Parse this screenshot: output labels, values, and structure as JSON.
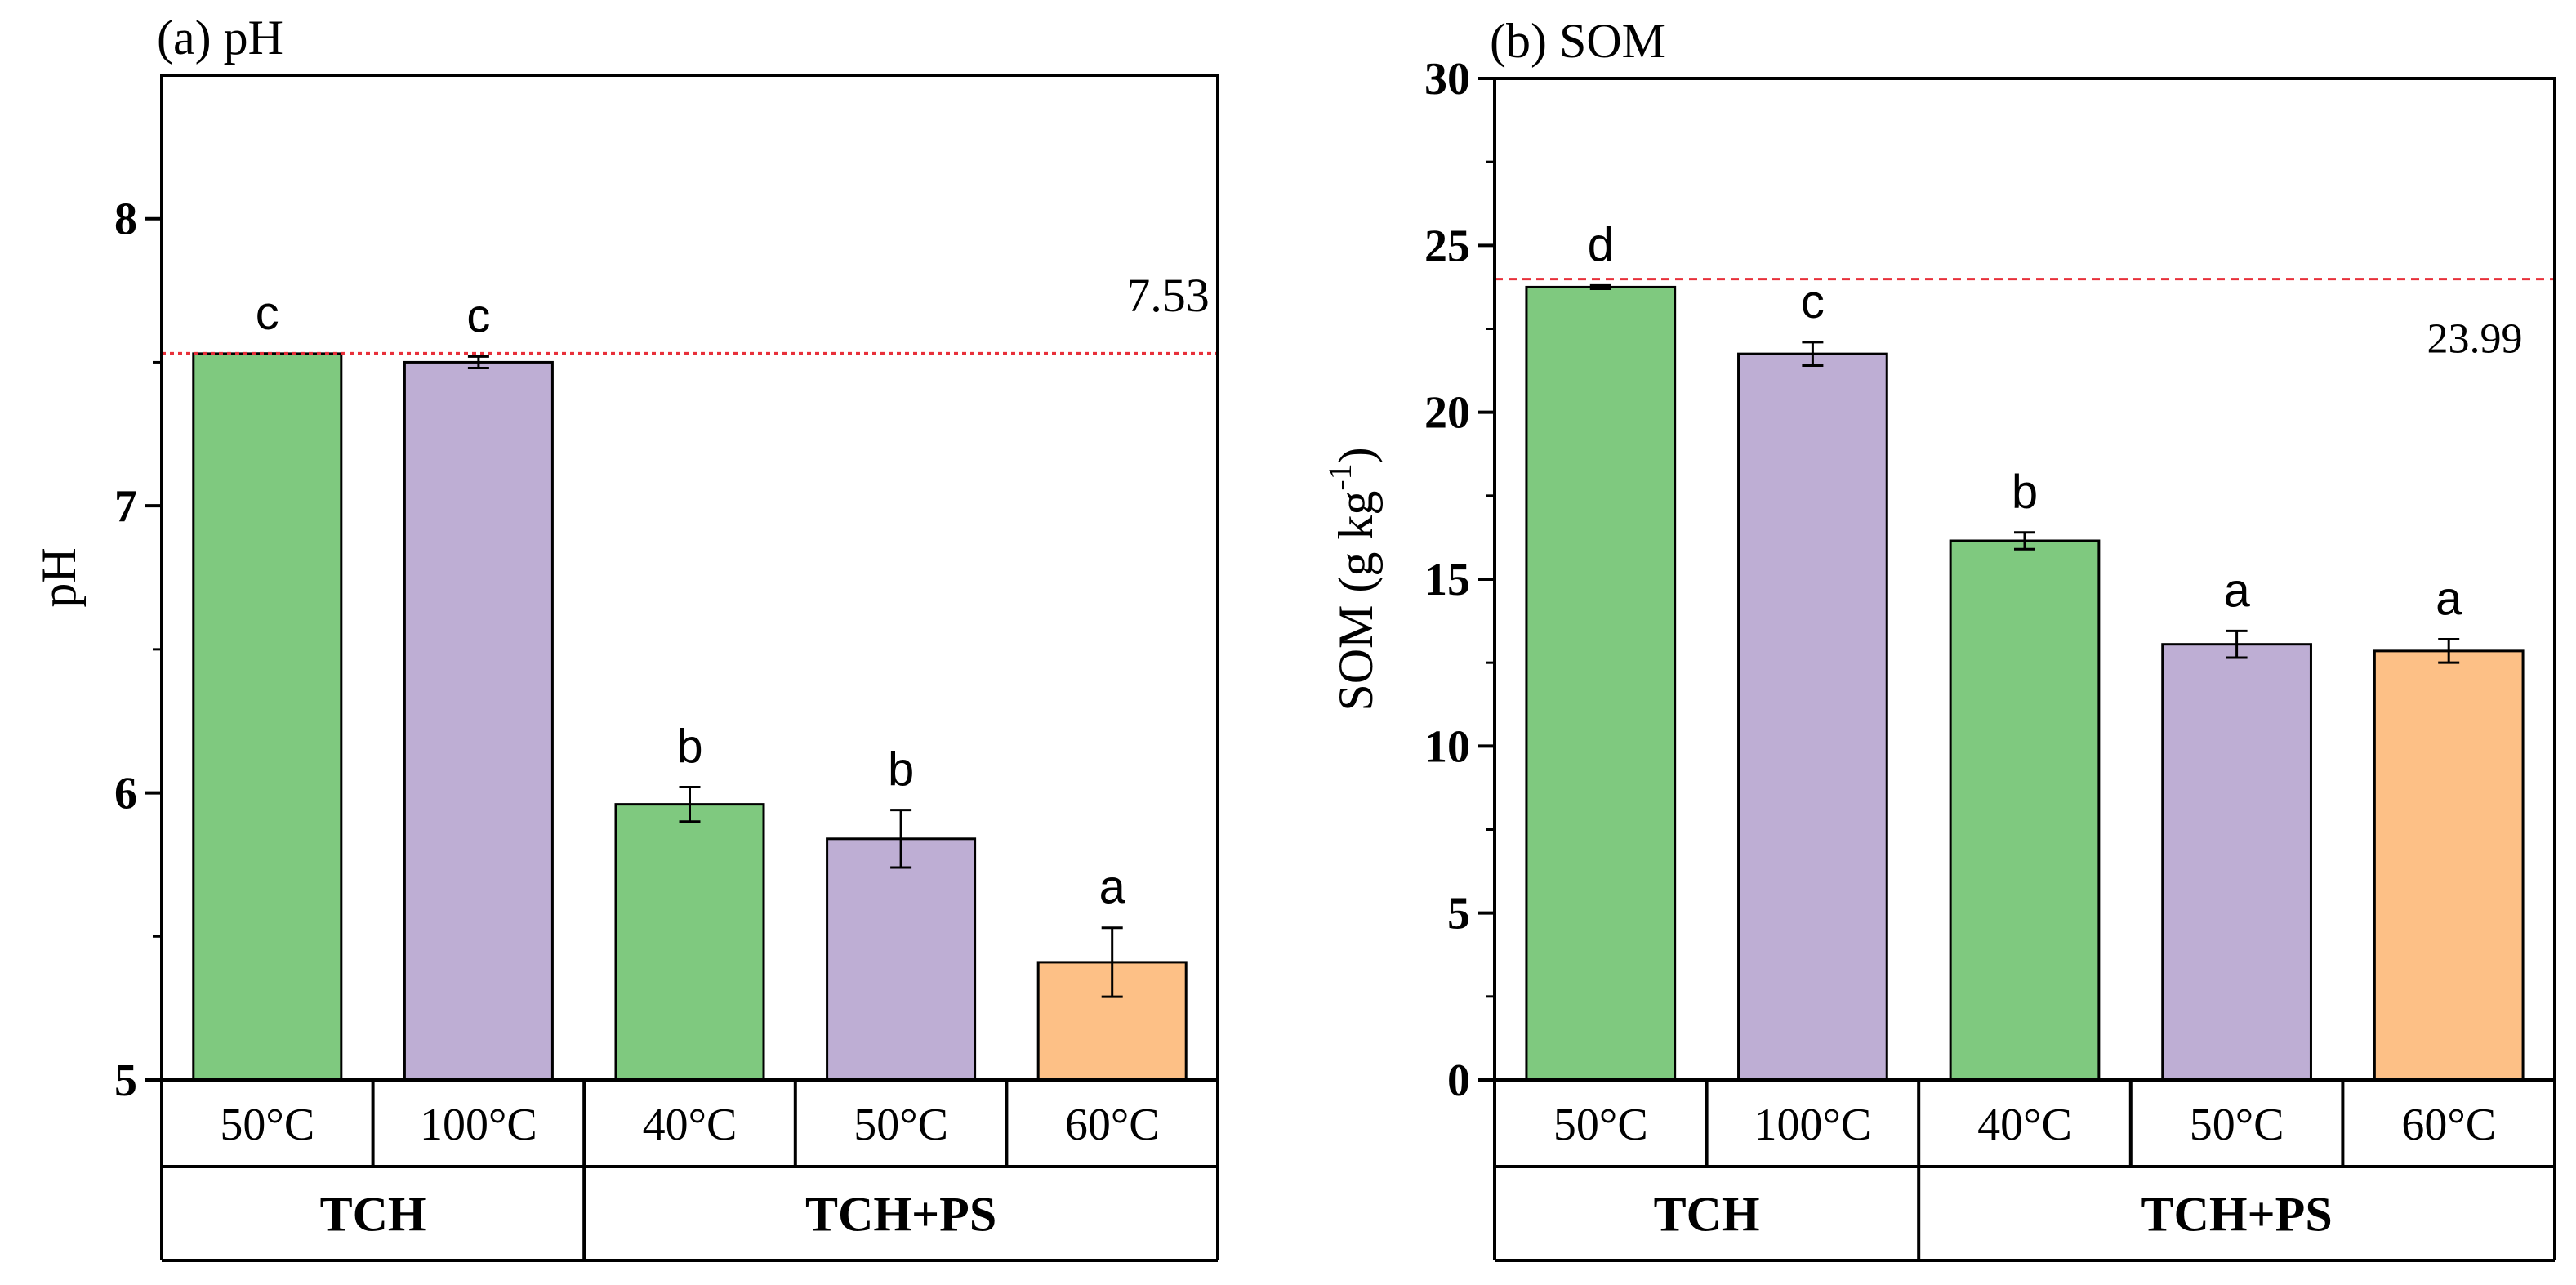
{
  "colors": {
    "green": "#7fc97f",
    "purple": "#beaed4",
    "orange": "#fdc086",
    "refline": "#e8303a",
    "axis": "#000000"
  },
  "chart_data": [
    {
      "type": "bar",
      "panel_title": "(a) pH",
      "ylabel": "pH",
      "ylim": [
        5,
        8.5
      ],
      "yticks_major": [
        5,
        6,
        7,
        8
      ],
      "yticks_minor": [
        5.5,
        6.5,
        7.5
      ],
      "ytick_labels": [
        "5",
        "6",
        "7",
        "8"
      ],
      "categories": [
        "50°C",
        "100°C",
        "40°C",
        "50°C",
        "60°C"
      ],
      "groups": [
        {
          "label": "TCH",
          "span": [
            0,
            1
          ]
        },
        {
          "label": "TCH+PS",
          "span": [
            2,
            4
          ]
        }
      ],
      "values": [
        7.53,
        7.5,
        5.96,
        5.84,
        5.41
      ],
      "errors": [
        0.0,
        0.02,
        0.06,
        0.1,
        0.12
      ],
      "letters": [
        "c",
        "c",
        "b",
        "b",
        "a"
      ],
      "bar_colors": [
        "green",
        "purple",
        "green",
        "purple",
        "orange"
      ],
      "reference_line": {
        "value": 7.53,
        "label": "7.53"
      }
    },
    {
      "type": "bar",
      "panel_title": "(b) SOM",
      "ylabel_main": "SOM (g kg",
      "ylabel_sup": "-1",
      "ylabel_end": ")",
      "ylim": [
        0,
        30
      ],
      "yticks_major": [
        0,
        5,
        10,
        15,
        20,
        25,
        30
      ],
      "yticks_minor": [
        2.5,
        7.5,
        12.5,
        17.5,
        22.5,
        27.5
      ],
      "ytick_labels": [
        "0",
        "5",
        "10",
        "15",
        "20",
        "25",
        "30"
      ],
      "categories": [
        "50°C",
        "100°C",
        "40°C",
        "50°C",
        "60°C"
      ],
      "groups": [
        {
          "label": "TCH",
          "span": [
            0,
            1
          ]
        },
        {
          "label": "TCH+PS",
          "span": [
            2,
            4
          ]
        }
      ],
      "values": [
        23.75,
        21.75,
        16.15,
        13.05,
        12.85
      ],
      "errors": [
        0.05,
        0.35,
        0.25,
        0.4,
        0.35
      ],
      "letters": [
        "d",
        "c",
        "b",
        "a",
        "a"
      ],
      "bar_colors": [
        "green",
        "purple",
        "green",
        "purple",
        "orange"
      ],
      "reference_line": {
        "value": 23.99,
        "label": "23.99"
      }
    }
  ]
}
